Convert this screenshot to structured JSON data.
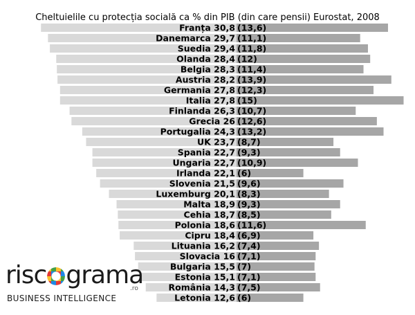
{
  "chart_data": {
    "type": "bar",
    "title": "Cheltuielile cu protecția socială ca % din PIB (din care pensii) Eurostat, 2008",
    "categories": [
      "Franța",
      "Danemarca",
      "Suedia",
      "Olanda",
      "Belgia",
      "Austria",
      "Germania",
      "Italia",
      "Finlanda",
      "Grecia",
      "Portugalia",
      "UK",
      "Spania",
      "Ungaria",
      "Irlanda",
      "Slovenia",
      "Luxemburg",
      "Malta",
      "Cehia",
      "Polonia",
      "Cipru",
      "Lituania",
      "Slovacia",
      "Bulgaria",
      "Estonia",
      "România",
      "Letonia"
    ],
    "series": [
      {
        "values": [
          30.8,
          29.7,
          29.4,
          28.4,
          28.3,
          28.2,
          27.8,
          27.8,
          26.3,
          26,
          24.3,
          23.7,
          22.7,
          22.7,
          22.1,
          21.5,
          20.1,
          18.9,
          18.7,
          18.6,
          18.4,
          16.2,
          16,
          15.5,
          15.1,
          14.3,
          12.6
        ]
      },
      {
        "values": [
          13.6,
          11.1,
          11.8,
          12,
          11.4,
          13.9,
          12.3,
          15,
          10.7,
          12.6,
          13.2,
          8.7,
          9.3,
          10.9,
          6,
          9.6,
          8.3,
          9.3,
          8.5,
          11.6,
          6.9,
          7.4,
          7.1,
          7,
          7.1,
          7.5,
          6
        ]
      }
    ],
    "labels_social": [
      "30,8",
      "29,7",
      "29,4",
      "28,4",
      "28,3",
      "28,2",
      "27,8",
      "27,8",
      "26,3",
      "26",
      "24,3",
      "23,7",
      "22,7",
      "22,7",
      "22,1",
      "21,5",
      "20,1",
      "18,9",
      "18,7",
      "18,6",
      "18,4",
      "16,2",
      "16",
      "15,5",
      "15,1",
      "14,3",
      "12,6"
    ],
    "labels_pensions": [
      "(13,6)",
      "(11,1)",
      "(11,8)",
      "(12)",
      "(11,4)",
      "(13,9)",
      "(12,3)",
      "(15)",
      "(10,7)",
      "(12,6)",
      "(13,2)",
      "(8,7)",
      "(9,3)",
      "(10,9)",
      "(6)",
      "(9,6)",
      "(8,3)",
      "(9,3)",
      "(8,5)",
      "(11,6)",
      "(6,9)",
      "(7,4)",
      "(7,1)",
      "(7)",
      "(7,1)",
      "(7,5)",
      "(6)"
    ],
    "colors": {
      "social": "#d9d9d9",
      "pensions": "#a6a6a6",
      "text": "#000000"
    },
    "legend": "none",
    "grid": false
  },
  "logo": {
    "word_left": "risc",
    "word_right": "grama",
    "suffix": ".ro",
    "subtitle": "BUSINESS INTELLIGENCE",
    "ring_colors": [
      "#e53935",
      "#fbc02d",
      "#43a047",
      "#1e88e5"
    ]
  }
}
